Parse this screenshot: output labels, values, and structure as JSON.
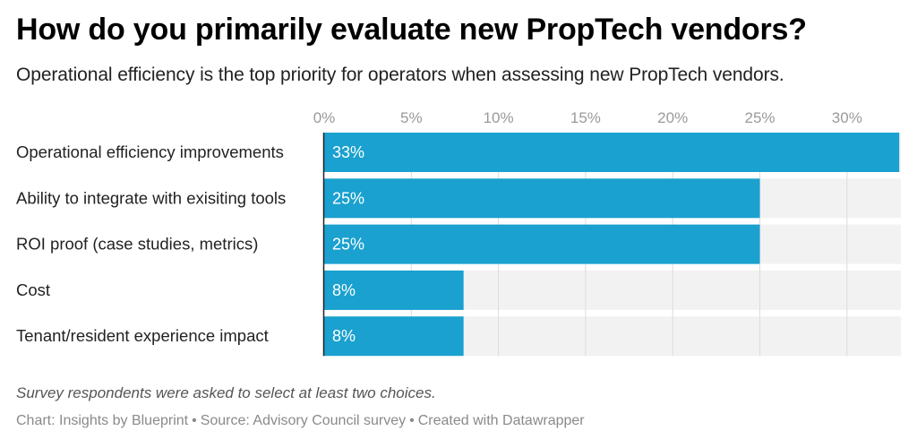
{
  "header": {
    "title": "How do you primarily evaluate new PropTech vendors?",
    "subtitle": "Operational efficiency is the top priority for operators when assessing new PropTech vendors."
  },
  "footer": {
    "note": "Survey respondents were asked to select at least two choices.",
    "credits": [
      "Chart: Insights by Blueprint",
      "Source: Advisory Council survey",
      "Created with Datawrapper"
    ],
    "separator": "•"
  },
  "colors": {
    "bar": "#1aa1cf",
    "track": "#f2f2f2",
    "gridline": "#dcdcdc",
    "axis": "#222222",
    "tick_label": "#9a9a9a",
    "value_label": "#ffffff",
    "category_label": "#222222"
  },
  "chart_data": {
    "type": "bar",
    "orientation": "horizontal",
    "title": "How do you primarily evaluate new PropTech vendors?",
    "subtitle": "Operational efficiency is the top priority for operators when assessing new PropTech vendors.",
    "categories": [
      "Operational efficiency improvements",
      "Ability to integrate with exisiting tools",
      "ROI proof (case studies, metrics)",
      "Cost",
      "Tenant/resident experience impact"
    ],
    "values": [
      33,
      25,
      25,
      8,
      8
    ],
    "value_labels": [
      "33%",
      "25%",
      "25%",
      "8%",
      "8%"
    ],
    "unit": "%",
    "xlabel": "",
    "ylabel": "",
    "xlim": [
      0,
      33
    ],
    "ticks": [
      0,
      5,
      10,
      15,
      20,
      25,
      30
    ],
    "tick_labels": [
      "0%",
      "5%",
      "10%",
      "15%",
      "20%",
      "25%",
      "30%"
    ],
    "axis_position": "top",
    "grid": true,
    "legend": "none"
  }
}
